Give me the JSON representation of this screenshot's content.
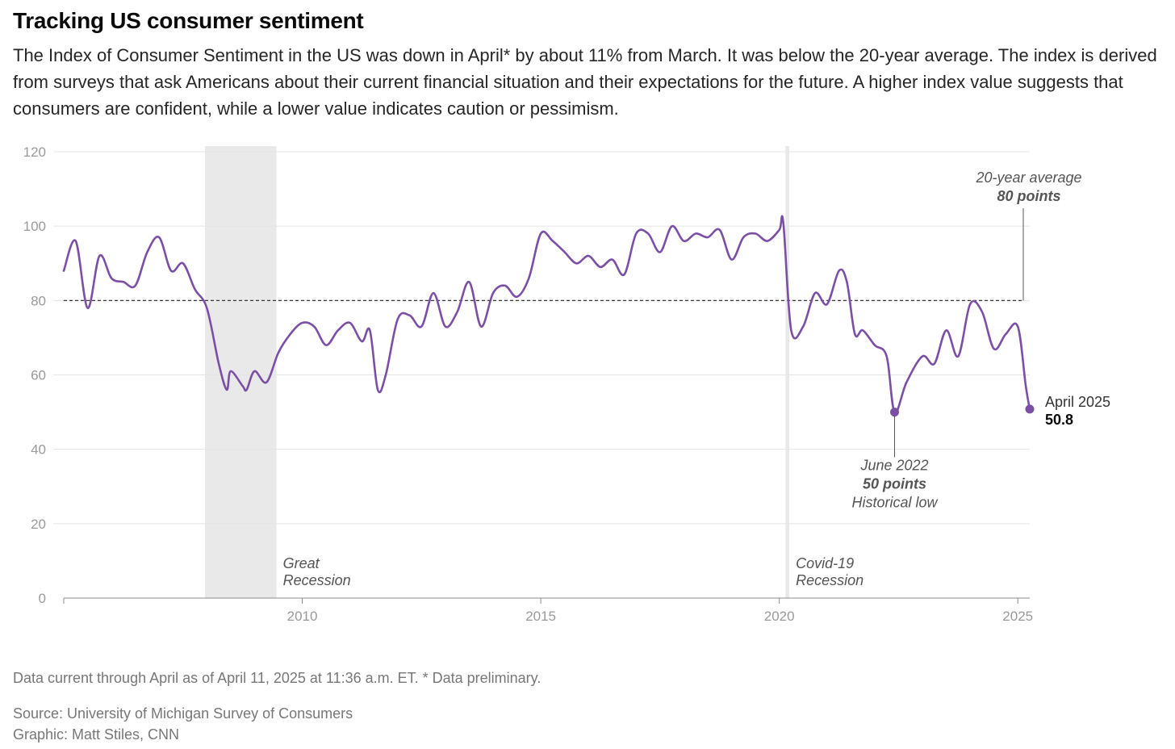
{
  "header": {
    "title": "Tracking US consumer sentiment",
    "subtitle": "The Index of Consumer Sentiment in the US was down in April* by about 11% from March. It was below the 20-year average. The index is derived from surveys that ask Americans about their current financial situation and their expectations for the future. A higher index value suggests that consumers are confident, while a lower value indicates caution or pessimism."
  },
  "chart_data": {
    "type": "line",
    "title": "Tracking US consumer sentiment",
    "xlabel": "",
    "ylabel": "",
    "ylim": [
      0,
      120
    ],
    "xlim": [
      2005.0,
      2025.25
    ],
    "y_ticks": [
      "0",
      "20",
      "40",
      "60",
      "80",
      "100",
      "120"
    ],
    "x_ticks": [
      "2010",
      "2015",
      "2020",
      "2025"
    ],
    "grid": true,
    "line_color": "#7b4fa6",
    "shade_color": "#e9e9e9",
    "series": [
      {
        "x": [
          "2005-01",
          "2005-04",
          "2005-07",
          "2005-10",
          "2006-01",
          "2006-04",
          "2006-07",
          "2006-10",
          "2007-01",
          "2007-04",
          "2007-07",
          "2007-10",
          "2008-01",
          "2008-04",
          "2008-06",
          "2008-07",
          "2008-10",
          "2008-11",
          "2009-01",
          "2009-04",
          "2009-07",
          "2009-10",
          "2010-01",
          "2010-04",
          "2010-07",
          "2010-10",
          "2011-01",
          "2011-04",
          "2011-06",
          "2011-08",
          "2011-10",
          "2012-01",
          "2012-04",
          "2012-07",
          "2012-10",
          "2013-01",
          "2013-04",
          "2013-07",
          "2013-10",
          "2014-01",
          "2014-04",
          "2014-07",
          "2014-10",
          "2015-01",
          "2015-04",
          "2015-07",
          "2015-10",
          "2016-01",
          "2016-04",
          "2016-07",
          "2016-10",
          "2017-01",
          "2017-04",
          "2017-07",
          "2017-10",
          "2018-01",
          "2018-04",
          "2018-07",
          "2018-10",
          "2019-01",
          "2019-04",
          "2019-07",
          "2019-10",
          "2020-01",
          "2020-02",
          "2020-04",
          "2020-07",
          "2020-10",
          "2021-01",
          "2021-04",
          "2021-06",
          "2021-08",
          "2021-10",
          "2022-01",
          "2022-04",
          "2022-06",
          "2022-09",
          "2023-01",
          "2023-04",
          "2023-07",
          "2023-10",
          "2024-01",
          "2024-04",
          "2024-07",
          "2024-10",
          "2025-01",
          "2025-03",
          "2025-04"
        ],
        "values": [
          88,
          96,
          78,
          92,
          86,
          85,
          84,
          93,
          97,
          88,
          90,
          83,
          78,
          63,
          56,
          61,
          57,
          56,
          61,
          58,
          66,
          71,
          74,
          73,
          68,
          72,
          74,
          69,
          72,
          56,
          60,
          75,
          76,
          73,
          82,
          73,
          77,
          85,
          73,
          82,
          84,
          81,
          86,
          98,
          96,
          93,
          90,
          92,
          89,
          91,
          87,
          98,
          98,
          93,
          100,
          96,
          98,
          97,
          99,
          91,
          97,
          98,
          96,
          99,
          101,
          72,
          73,
          82,
          79,
          88,
          85,
          71,
          72,
          68,
          65,
          50,
          58,
          65,
          63,
          72,
          65,
          79,
          77,
          67,
          71,
          73,
          57,
          50.8
        ]
      }
    ],
    "reference_line": {
      "value": 80,
      "label": "20-year average",
      "value_label": "80 points"
    },
    "shaded_periods": [
      {
        "start": 2007.96,
        "end": 2009.46,
        "label_lines": [
          "Great",
          "Recession"
        ]
      },
      {
        "start": 2020.13,
        "end": 2020.21,
        "label_lines": [
          "Covid-19",
          "Recession"
        ]
      }
    ],
    "annotations": {
      "low": {
        "x": "2022-06",
        "y": 50,
        "date": "June 2022",
        "value_label": "50 points",
        "note": "Historical low"
      },
      "latest": {
        "x": "2025-04",
        "y": 50.8,
        "date": "April 2025",
        "value_label": "50.8"
      }
    }
  },
  "footer": {
    "note": "Data current through April as of April 11, 2025 at 11:36 a.m. ET. * Data preliminary.",
    "source": "Source: University of Michigan Survey of Consumers",
    "credit": "Graphic: Matt Stiles, CNN"
  }
}
